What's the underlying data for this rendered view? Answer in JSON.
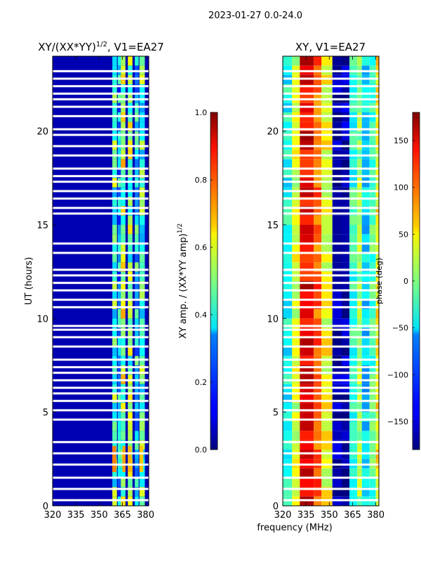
{
  "page": {
    "title": "2023-01-27 0.0-24.0",
    "shared_xlabel": "frequency (MHz)"
  },
  "chart_data": [
    {
      "type": "heatmap",
      "title_main": "XY/(XX*YY)",
      "title_exp": "1/2",
      "title_suffix": ", V1=EA27",
      "xlabel": "frequency (MHz)",
      "ylabel": "UT (hours)",
      "x": {
        "min": 320,
        "max": 382,
        "ticks": [
          320,
          335,
          350,
          365,
          380
        ],
        "tick_labels": [
          "320",
          "335",
          "350",
          "365",
          "380"
        ]
      },
      "y": {
        "min": 0,
        "max": 24,
        "ticks": [
          0,
          5,
          10,
          15,
          20
        ],
        "tick_labels": [
          "0",
          "5",
          "10",
          "15",
          "20"
        ]
      },
      "colorbar": {
        "label_main": "XY amp. / (XX*YY amp)",
        "label_exp": "1/2",
        "min": 0.0,
        "max": 1.0,
        "ticks": [
          0.0,
          0.2,
          0.4,
          0.6,
          0.8,
          1.0
        ],
        "tick_labels": [
          "0.0",
          "0.2",
          "0.4",
          "0.6",
          "0.8",
          "1.0"
        ],
        "colormap": "jet"
      },
      "background_value": 0.05,
      "bands": [
        {
          "f0": 358.5,
          "f1": 361.5,
          "value": 0.45
        },
        {
          "f0": 362,
          "f1": 364,
          "value": 0.3
        },
        {
          "f0": 364,
          "f1": 367,
          "value": 0.55
        },
        {
          "f0": 368.5,
          "f1": 371.5,
          "value": 0.5
        },
        {
          "f0": 373,
          "f1": 375.5,
          "value": 0.35
        },
        {
          "f0": 376,
          "f1": 379.5,
          "value": 0.45
        }
      ],
      "highlights": [
        {
          "f0": 358.5,
          "f1": 361,
          "t0": 1.8,
          "t1": 3.2,
          "value": 0.75
        },
        {
          "f0": 365,
          "f1": 367,
          "t0": 1.8,
          "t1": 3.2,
          "value": 0.72
        },
        {
          "f0": 368.5,
          "f1": 371,
          "t0": 1.8,
          "t1": 3.2,
          "value": 0.7
        },
        {
          "f0": 376,
          "f1": 378.5,
          "t0": 1.8,
          "t1": 3.2,
          "value": 0.68
        }
      ],
      "flagged_utc_hours": [
        0.3,
        0.9,
        1.5,
        2.2,
        2.8,
        3.4,
        4.6,
        5.1,
        5.6,
        6.0,
        6.3,
        6.7,
        7.1,
        7.4,
        7.8,
        8.5,
        9.0,
        9.4,
        9.6,
        10.6,
        11.0,
        11.5,
        11.9,
        12.3,
        12.6,
        13.5,
        14.0,
        15.6,
        15.9,
        16.4,
        16.8,
        17.3,
        17.6,
        18.0,
        18.7,
        19.2,
        19.8,
        20.1,
        20.8,
        21.3,
        21.7,
        22.0,
        22.4,
        22.8,
        23.2
      ]
    },
    {
      "type": "heatmap",
      "title_main": "XY, V1=EA27",
      "xlabel": "frequency (MHz)",
      "ylabel": "",
      "x": {
        "min": 320,
        "max": 382,
        "ticks": [
          320,
          335,
          350,
          365,
          380
        ],
        "tick_labels": [
          "320",
          "335",
          "350",
          "365",
          "380"
        ]
      },
      "y": {
        "min": 0,
        "max": 24,
        "ticks": [
          0,
          5,
          10,
          15,
          20
        ],
        "tick_labels": [
          "0",
          "5",
          "10",
          "15",
          "20"
        ]
      },
      "colorbar": {
        "label_main": "phase (deg)",
        "min": -180,
        "max": 180,
        "ticks": [
          -150,
          -100,
          -50,
          0,
          50,
          100,
          150
        ],
        "tick_labels": [
          "−150",
          "−100",
          "−50",
          "0",
          "50",
          "100",
          "150"
        ],
        "colormap": "jet"
      },
      "phase_bands": [
        {
          "f0": 320,
          "f1": 326,
          "value": -40
        },
        {
          "f0": 326,
          "f1": 331,
          "value": 30
        },
        {
          "f0": 331,
          "f1": 340,
          "value": 140
        },
        {
          "f0": 340,
          "f1": 345,
          "value": 100
        },
        {
          "f0": 345,
          "f1": 352,
          "value": 40
        },
        {
          "f0": 352,
          "f1": 358,
          "value": -170
        },
        {
          "f0": 358,
          "f1": 363,
          "value": -165
        },
        {
          "f0": 363,
          "f1": 368,
          "value": -30
        },
        {
          "f0": 368,
          "f1": 371,
          "value": 10
        },
        {
          "f0": 371,
          "f1": 376,
          "value": -60
        },
        {
          "f0": 376,
          "f1": 380,
          "value": -20
        },
        {
          "f0": 380,
          "f1": 382,
          "value": 50
        }
      ],
      "flagged_utc_hours": [
        0.3,
        0.9,
        1.5,
        2.2,
        2.8,
        3.4,
        4.6,
        5.1,
        5.6,
        6.0,
        6.3,
        6.7,
        7.1,
        7.4,
        7.8,
        8.5,
        9.0,
        9.4,
        9.6,
        10.6,
        11.0,
        11.5,
        11.9,
        12.3,
        12.6,
        13.5,
        14.0,
        15.6,
        15.9,
        16.4,
        16.8,
        17.3,
        17.6,
        18.0,
        18.7,
        19.2,
        19.8,
        20.1,
        20.8,
        21.3,
        21.7,
        22.0,
        22.4,
        22.8,
        23.2
      ]
    }
  ]
}
